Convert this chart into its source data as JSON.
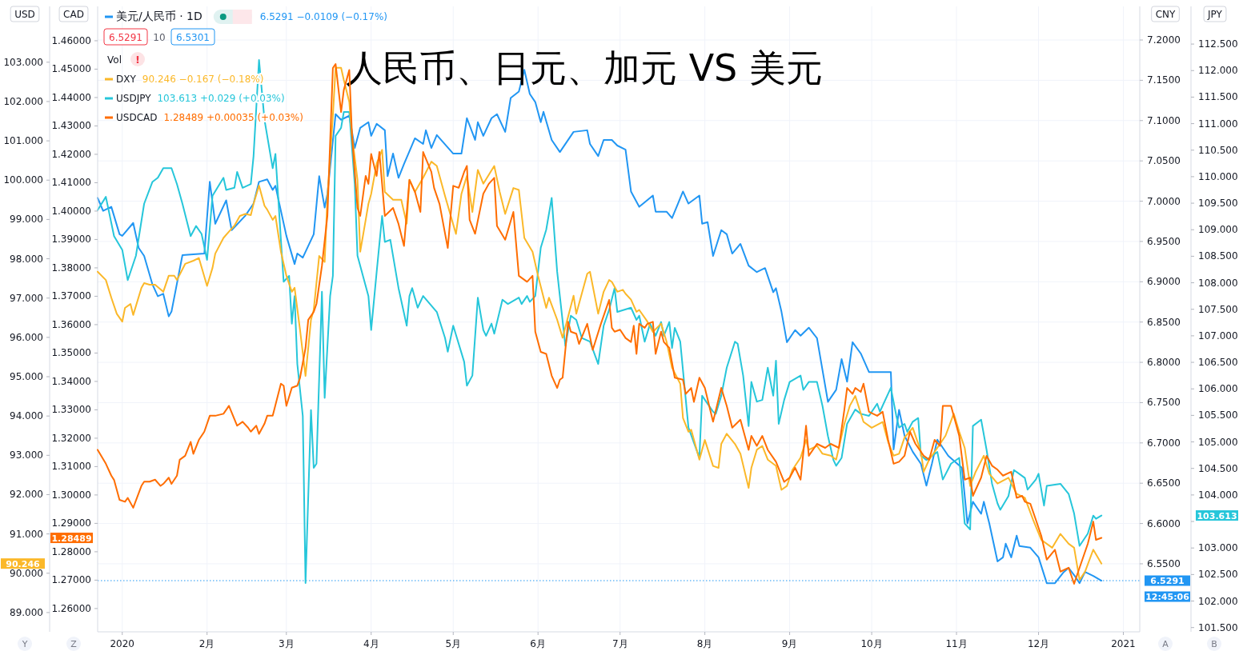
{
  "chart_data": [
    {
      "type": "line",
      "title": "人民币、日元、加元 VS 美元",
      "ylabel": "CNY",
      "y2label": "JPY",
      "grid": true,
      "legend": "top left",
      "xlim": [
        "2019-12-23",
        "2021-01-07"
      ],
      "xticks": [
        {
          "value": "2020-01-01",
          "label": "2020"
        },
        {
          "value": "2020-02-01",
          "label": "2月"
        },
        {
          "value": "2020-03-01",
          "label": "3月"
        },
        {
          "value": "2020-04-01",
          "label": "4月"
        },
        {
          "value": "2020-05-01",
          "label": "5月"
        },
        {
          "value": "2020-06-01",
          "label": "6月"
        },
        {
          "value": "2020-07-01",
          "label": "7月"
        },
        {
          "value": "2020-08-01",
          "label": "8月"
        },
        {
          "value": "2020-09-01",
          "label": "9月"
        },
        {
          "value": "2020-10-01",
          "label": "10月"
        },
        {
          "value": "2020-11-01",
          "label": "11月"
        },
        {
          "value": "2020-12-01",
          "label": "12月"
        },
        {
          "value": "2021-01-01",
          "label": "2021"
        }
      ],
      "ylim": [
        6.4656,
        7.2417
      ],
      "yticks": [
        {
          "value": 6.55,
          "label": "6.5500"
        },
        {
          "value": 6.6,
          "label": "6.6000"
        },
        {
          "value": 6.65,
          "label": "6.6500"
        },
        {
          "value": 6.7,
          "label": "6.7000"
        },
        {
          "value": 6.75,
          "label": "6.7500"
        },
        {
          "value": 6.8,
          "label": "6.8000"
        },
        {
          "value": 6.85,
          "label": "6.8500"
        },
        {
          "value": 6.9,
          "label": "6.9000"
        },
        {
          "value": 6.95,
          "label": "6.9500"
        },
        {
          "value": 7.0,
          "label": "7.0000"
        },
        {
          "value": 7.05,
          "label": "7.0500"
        },
        {
          "value": 7.1,
          "label": "7.1000"
        },
        {
          "value": 7.15,
          "label": "7.1500"
        },
        {
          "value": 7.2,
          "label": "7.2000"
        }
      ],
      "y2lim": [
        101.42,
        113.21
      ],
      "y2ticks": [
        {
          "value": 101.5,
          "label": "101.500"
        },
        {
          "value": 102,
          "label": "102.000"
        },
        {
          "value": 102.5,
          "label": "102.500"
        },
        {
          "value": 103,
          "label": "103.000"
        },
        {
          "value": 103.5,
          "label": null
        },
        {
          "value": 104,
          "label": "104.000"
        },
        {
          "value": 104.5,
          "label": "104.500"
        },
        {
          "value": 105,
          "label": "105.000"
        },
        {
          "value": 105.5,
          "label": "105.500"
        },
        {
          "value": 106,
          "label": "106.000"
        },
        {
          "value": 106.5,
          "label": "106.500"
        },
        {
          "value": 107,
          "label": "107.000"
        },
        {
          "value": 107.5,
          "label": "107.500"
        },
        {
          "value": 108,
          "label": "108.000"
        },
        {
          "value": 108.5,
          "label": "108.500"
        },
        {
          "value": 109,
          "label": "109.000"
        },
        {
          "value": 109.5,
          "label": "109.500"
        },
        {
          "value": 110,
          "label": "110.000"
        },
        {
          "value": 110.5,
          "label": "110.500"
        },
        {
          "value": 111,
          "label": "111.000"
        },
        {
          "value": 111.5,
          "label": "111.500"
        },
        {
          "value": 112,
          "label": "112.000"
        },
        {
          "value": 112.5,
          "label": "112.500"
        }
      ],
      "series": [
        {
          "name": "美元/人民币 · 1D",
          "color": "#2196f3",
          "x": [
            "2019-12-23",
            "2019-12-25",
            "2019-12-28",
            "2019-12-31",
            "2020-01-01",
            "2020-01-05",
            "2020-01-07",
            "2020-01-09",
            "2020-01-12",
            "2020-01-14",
            "2020-01-16",
            "2020-01-18",
            "2020-01-19",
            "2020-01-23",
            "2020-01-31",
            "2020-02-02",
            "2020-02-04",
            "2020-02-08",
            "2020-02-10",
            "2020-02-15",
            "2020-02-18",
            "2020-02-20",
            "2020-02-23",
            "2020-02-25",
            "2020-02-26",
            "2020-03-01",
            "2020-03-04",
            "2020-03-05",
            "2020-03-07",
            "2020-03-11",
            "2020-03-13",
            "2020-03-15",
            "2020-03-16",
            "2020-03-19",
            "2020-03-21",
            "2020-03-24",
            "2020-03-26",
            "2020-03-28",
            "2020-03-31",
            "2020-04-01",
            "2020-04-03",
            "2020-04-06",
            "2020-04-07",
            "2020-04-09",
            "2020-04-11",
            "2020-04-13",
            "2020-04-17",
            "2020-04-20",
            "2020-04-21",
            "2020-04-23",
            "2020-04-25",
            "2020-05-01",
            "2020-05-04",
            "2020-05-06",
            "2020-05-09",
            "2020-05-10",
            "2020-05-12",
            "2020-05-15",
            "2020-05-17",
            "2020-05-20",
            "2020-05-22",
            "2020-05-25",
            "2020-05-27",
            "2020-05-29",
            "2020-05-31",
            "2020-06-02",
            "2020-06-03",
            "2020-06-06",
            "2020-06-09",
            "2020-06-14",
            "2020-06-19",
            "2020-06-20",
            "2020-06-23",
            "2020-06-25",
            "2020-06-28",
            "2020-06-30",
            "2020-07-03",
            "2020-07-05",
            "2020-07-08",
            "2020-07-13",
            "2020-07-14",
            "2020-07-18",
            "2020-07-20",
            "2020-07-24",
            "2020-07-26",
            "2020-07-30",
            "2020-07-31",
            "2020-08-02",
            "2020-08-04",
            "2020-08-07",
            "2020-08-09",
            "2020-08-11",
            "2020-08-14",
            "2020-08-17",
            "2020-08-20",
            "2020-08-23",
            "2020-08-26",
            "2020-08-27",
            "2020-08-29",
            "2020-08-31",
            "2020-09-03",
            "2020-09-05",
            "2020-09-08",
            "2020-09-11",
            "2020-09-15",
            "2020-09-18",
            "2020-09-20",
            "2020-09-22",
            "2020-09-24",
            "2020-09-27",
            "2020-09-30",
            "2020-10-08",
            "2020-10-09",
            "2020-10-11",
            "2020-10-13",
            "2020-10-16",
            "2020-10-19",
            "2020-10-21",
            "2020-10-23",
            "2020-10-25",
            "2020-10-29",
            "2020-11-03",
            "2020-11-05",
            "2020-11-07",
            "2020-11-10",
            "2020-11-11",
            "2020-11-13",
            "2020-11-16",
            "2020-11-18",
            "2020-11-19",
            "2020-11-21",
            "2020-11-23",
            "2020-11-24",
            "2020-11-28",
            "2020-12-01",
            "2020-12-04",
            "2020-12-07",
            "2020-12-10",
            "2020-12-12",
            "2020-12-14",
            "2020-12-16",
            "2020-12-18",
            "2020-12-21",
            "2020-12-24"
          ],
          "values": [
            7.004,
            6.988,
            6.993,
            6.959,
            6.957,
            6.973,
            6.942,
            6.932,
            6.897,
            6.882,
            6.885,
            6.857,
            6.863,
            6.933,
            6.935,
            7.024,
            6.972,
            7.001,
            6.964,
            6.982,
            6.997,
            7.024,
            7.027,
            7.014,
            7.019,
            6.957,
            6.922,
            6.935,
            6.93,
            6.959,
            7.031,
            6.992,
            7.009,
            7.108,
            7.101,
            7.106,
            7.066,
            7.091,
            7.098,
            7.081,
            7.096,
            7.088,
            7.031,
            7.059,
            7.029,
            7.046,
            7.078,
            7.071,
            7.088,
            7.066,
            7.082,
            7.059,
            7.059,
            7.103,
            7.076,
            7.098,
            7.081,
            7.103,
            7.108,
            7.086,
            7.128,
            7.136,
            7.163,
            7.133,
            7.123,
            7.098,
            7.111,
            7.076,
            7.061,
            7.086,
            7.088,
            7.071,
            7.056,
            7.076,
            7.076,
            7.069,
            7.064,
            7.012,
            6.993,
            7.007,
            6.987,
            6.987,
            6.979,
            7.012,
            6.997,
            7.007,
            6.972,
            6.974,
            6.932,
            6.964,
            6.959,
            6.935,
            6.947,
            6.92,
            6.912,
            6.917,
            6.887,
            6.892,
            6.863,
            6.825,
            6.84,
            6.833,
            6.843,
            6.83,
            6.751,
            6.766,
            6.804,
            6.776,
            6.825,
            6.811,
            6.788,
            6.788,
            6.692,
            6.741,
            6.709,
            6.689,
            6.674,
            6.647,
            6.674,
            6.704,
            6.684,
            6.669,
            6.6,
            6.627,
            6.612,
            6.627,
            6.6,
            6.553,
            6.558,
            6.575,
            6.558,
            6.585,
            6.572,
            6.57,
            6.558,
            6.526,
            6.526,
            6.539,
            6.545,
            6.536,
            6.526,
            6.54,
            6.535,
            6.5291
          ]
        },
        {
          "name": "USDJPY",
          "color": "#26c6da",
          "axis": "y2",
          "x": [
            "2019-12-23",
            "2019-12-26",
            "2019-12-29",
            "2020-01-01",
            "2020-01-03",
            "2020-01-06",
            "2020-01-09",
            "2020-01-12",
            "2020-01-14",
            "2020-01-16",
            "2020-01-19",
            "2020-01-21",
            "2020-01-23",
            "2020-01-26",
            "2020-01-28",
            "2020-01-30",
            "2020-02-01",
            "2020-02-03",
            "2020-02-07",
            "2020-02-08",
            "2020-02-11",
            "2020-02-12",
            "2020-02-14",
            "2020-02-17",
            "2020-02-18",
            "2020-02-20",
            "2020-02-22",
            "2020-02-25",
            "2020-02-26",
            "2020-02-28",
            "2020-02-29",
            "2020-03-02",
            "2020-03-03",
            "2020-03-04",
            "2020-03-05",
            "2020-03-07",
            "2020-03-08",
            "2020-03-10",
            "2020-03-11",
            "2020-03-12",
            "2020-03-14",
            "2020-03-15",
            "2020-03-17",
            "2020-03-18",
            "2020-03-19",
            "2020-03-21",
            "2020-03-22",
            "2020-03-24",
            "2020-03-26",
            "2020-03-27",
            "2020-03-31",
            "2020-04-01",
            "2020-04-03",
            "2020-04-05",
            "2020-04-06",
            "2020-04-08",
            "2020-04-11",
            "2020-04-14",
            "2020-04-15",
            "2020-04-16",
            "2020-04-18",
            "2020-04-20",
            "2020-04-25",
            "2020-04-28",
            "2020-04-29",
            "2020-05-01",
            "2020-05-05",
            "2020-05-06",
            "2020-05-08",
            "2020-05-10",
            "2020-05-12",
            "2020-05-13",
            "2020-05-15",
            "2020-05-16",
            "2020-05-19",
            "2020-05-21",
            "2020-05-25",
            "2020-05-26",
            "2020-05-28",
            "2020-05-29",
            "2020-05-31",
            "2020-06-02",
            "2020-06-04",
            "2020-06-06",
            "2020-06-08",
            "2020-06-11",
            "2020-06-13",
            "2020-06-15",
            "2020-06-17",
            "2020-06-20",
            "2020-06-23",
            "2020-06-25",
            "2020-06-27",
            "2020-06-29",
            "2020-06-30",
            "2020-07-05",
            "2020-07-07",
            "2020-07-08",
            "2020-07-10",
            "2020-07-12",
            "2020-07-14",
            "2020-07-16",
            "2020-07-17",
            "2020-07-19",
            "2020-07-20",
            "2020-07-21",
            "2020-07-23",
            "2020-07-26",
            "2020-07-30",
            "2020-07-31",
            "2020-08-04",
            "2020-08-05",
            "2020-08-07",
            "2020-08-09",
            "2020-08-12",
            "2020-08-13",
            "2020-08-15",
            "2020-08-17",
            "2020-08-18",
            "2020-08-20",
            "2020-08-22",
            "2020-08-24",
            "2020-08-26",
            "2020-08-27",
            "2020-08-28",
            "2020-08-30",
            "2020-09-01",
            "2020-09-05",
            "2020-09-06",
            "2020-09-08",
            "2020-09-11",
            "2020-09-13",
            "2020-09-15",
            "2020-09-17",
            "2020-09-18",
            "2020-09-20",
            "2020-09-22",
            "2020-09-25",
            "2020-09-27",
            "2020-09-30",
            "2020-10-03",
            "2020-10-04",
            "2020-10-08",
            "2020-10-10",
            "2020-10-11",
            "2020-10-13",
            "2020-10-14",
            "2020-10-16",
            "2020-10-18",
            "2020-10-19",
            "2020-10-21",
            "2020-10-25",
            "2020-10-27",
            "2020-10-30",
            "2020-11-02",
            "2020-11-04",
            "2020-11-06",
            "2020-11-07",
            "2020-11-10",
            "2020-11-12",
            "2020-11-14",
            "2020-11-16",
            "2020-11-17",
            "2020-11-20",
            "2020-11-22",
            "2020-11-26",
            "2020-11-27",
            "2020-11-30",
            "2020-12-01",
            "2020-12-03",
            "2020-12-04",
            "2020-12-09",
            "2020-12-12",
            "2020-12-14",
            "2020-12-16",
            "2020-12-19",
            "2020-12-21",
            "2020-12-22",
            "2020-12-24"
          ],
          "values": [
            109.37,
            109.62,
            108.88,
            108.62,
            108.05,
            108.51,
            109.49,
            109.9,
            109.98,
            110.16,
            110.16,
            109.86,
            109.49,
            108.88,
            109.07,
            108.92,
            108.43,
            109.64,
            109.98,
            109.75,
            109.79,
            110.09,
            109.79,
            109.86,
            110.39,
            112.2,
            111.07,
            110.16,
            110.43,
            108.81,
            108.02,
            108.13,
            107.23,
            107.75,
            106.47,
            105.49,
            102.34,
            105.6,
            104.51,
            104.59,
            107.83,
            105.83,
            107.75,
            108.13,
            110.77,
            110.92,
            111.22,
            111.22,
            109.86,
            108.51,
            107.75,
            107.11,
            108.2,
            109.26,
            108.77,
            108.81,
            107.9,
            107.19,
            107.75,
            107.9,
            107.53,
            107.75,
            107.45,
            106.96,
            106.7,
            107.19,
            106.51,
            106.06,
            106.25,
            107.72,
            107.11,
            107.0,
            107.23,
            107.04,
            107.68,
            107.6,
            107.72,
            107.6,
            107.75,
            107.64,
            107.75,
            108.66,
            109.0,
            109.6,
            108.21,
            106.81,
            107.38,
            107.3,
            106.96,
            106.89,
            106.47,
            107.19,
            107.49,
            107.9,
            107.45,
            107.53,
            107.3,
            107.38,
            106.89,
            107.23,
            107.0,
            107.26,
            107.0,
            107.26,
            106.77,
            107.15,
            106.89,
            105.27,
            104.7,
            105.87,
            105.57,
            105.53,
            105.87,
            106.4,
            106.89,
            106.85,
            106.25,
            105.3,
            106.13,
            105.76,
            105.79,
            106.4,
            105.87,
            106.53,
            105.34,
            105.79,
            106.13,
            106.25,
            105.98,
            106.13,
            106.13,
            105.68,
            105.11,
            104.66,
            104.55,
            104.7,
            105.34,
            105.61,
            105.53,
            105.49,
            105.72,
            105.57,
            106.02,
            105.49,
            105.27,
            105.34,
            105.19,
            105.38,
            105.45,
            104.74,
            104.66,
            104.81,
            104.29,
            104.59,
            104.7,
            103.46,
            103.35,
            105.3,
            105.42,
            104.85,
            104.21,
            103.84,
            103.72,
            103.98,
            104.47,
            104.32,
            104.1,
            104.29,
            104.4,
            103.8,
            104.17,
            104.21,
            104.02,
            103.65,
            103.04,
            103.27,
            103.61,
            103.55,
            103.613
          ]
        }
      ],
      "ref_lines": [
        {
          "axis": "y",
          "value": 6.5291,
          "label": "6.5291",
          "color": "#2196f3",
          "line_style": "dotted"
        }
      ],
      "annotations": [
        "6.5291 −0.0109 (−0.17%)",
        "103.613 +0.029 (+0.03%)",
        "6.5291",
        "10",
        "6.5301",
        "Vol",
        "!",
        "103.613",
        "12:45:06",
        "A",
        "B"
      ]
    },
    {
      "type": "line",
      "ylabel": "USD",
      "y2label": "CAD",
      "legend": "top left",
      "tick_labels": "y",
      "xlim": [
        "2019-12-23",
        "2021-01-07"
      ],
      "ylim": [
        88.51,
        104.42
      ],
      "yticks": [
        {
          "value": 89,
          "label": "89.000"
        },
        {
          "value": 90,
          "label": "90.000"
        },
        {
          "value": 91,
          "label": "91.000"
        },
        {
          "value": 92,
          "label": "92.000"
        },
        {
          "value": 93,
          "label": "93.000"
        },
        {
          "value": 94,
          "label": "94.000"
        },
        {
          "value": 95,
          "label": "95.000"
        },
        {
          "value": 96,
          "label": "96.000"
        },
        {
          "value": 97,
          "label": "97.000"
        },
        {
          "value": 98,
          "label": "98.000"
        },
        {
          "value": 99,
          "label": "99.000"
        },
        {
          "value": 100,
          "label": "100.000"
        },
        {
          "value": 101,
          "label": "101.000"
        },
        {
          "value": 102,
          "label": "102.000"
        },
        {
          "value": 103,
          "label": "103.000"
        }
      ],
      "y2lim": [
        1.2518,
        1.4721
      ],
      "y2ticks": [
        {
          "value": 1.26,
          "label": "1.26000"
        },
        {
          "value": 1.27,
          "label": "1.27000"
        },
        {
          "value": 1.28,
          "label": "1.28000"
        },
        {
          "value": 1.29,
          "label": "1.29000"
        },
        {
          "value": 1.3,
          "label": "1.30000"
        },
        {
          "value": 1.31,
          "label": "1.31000"
        },
        {
          "value": 1.32,
          "label": "1.32000"
        },
        {
          "value": 1.33,
          "label": "1.33000"
        },
        {
          "value": 1.34,
          "label": "1.34000"
        },
        {
          "value": 1.35,
          "label": "1.35000"
        },
        {
          "value": 1.36,
          "label": "1.36000"
        },
        {
          "value": 1.37,
          "label": "1.37000"
        },
        {
          "value": 1.38,
          "label": "1.38000"
        },
        {
          "value": 1.39,
          "label": "1.39000"
        },
        {
          "value": 1.4,
          "label": "1.40000"
        },
        {
          "value": 1.41,
          "label": "1.41000"
        },
        {
          "value": 1.42,
          "label": "1.42000"
        },
        {
          "value": 1.43,
          "label": "1.43000"
        },
        {
          "value": 1.44,
          "label": "1.44000"
        },
        {
          "value": 1.45,
          "label": "1.45000"
        },
        {
          "value": 1.46,
          "label": "1.46000"
        }
      ],
      "series": [
        {
          "name": "DXY",
          "color": "#fbb829",
          "x": [
            "2019-12-23",
            "2019-12-26",
            "2019-12-28",
            "2019-12-30",
            "2020-01-01",
            "2020-01-02",
            "2020-01-04",
            "2020-01-05",
            "2020-01-08",
            "2020-01-09",
            "2020-01-11",
            "2020-01-13",
            "2020-01-16",
            "2020-01-18",
            "2020-01-20",
            "2020-01-21",
            "2020-01-24",
            "2020-01-27",
            "2020-01-29",
            "2020-02-01",
            "2020-02-03",
            "2020-02-04",
            "2020-02-07",
            "2020-02-09",
            "2020-02-11",
            "2020-02-13",
            "2020-02-15",
            "2020-02-17",
            "2020-02-18",
            "2020-02-20",
            "2020-02-22",
            "2020-02-23",
            "2020-02-25",
            "2020-02-26",
            "2020-02-28",
            "2020-03-01",
            "2020-03-03",
            "2020-03-04",
            "2020-03-06",
            "2020-03-08",
            "2020-03-10",
            "2020-03-11",
            "2020-03-13",
            "2020-03-15",
            "2020-03-16",
            "2020-03-18",
            "2020-03-19",
            "2020-03-21",
            "2020-03-22",
            "2020-03-24",
            "2020-03-25",
            "2020-03-27",
            "2020-03-28",
            "2020-03-30",
            "2020-03-31",
            "2020-04-01",
            "2020-04-03",
            "2020-04-05",
            "2020-04-06",
            "2020-04-09",
            "2020-04-12",
            "2020-04-14",
            "2020-04-15",
            "2020-04-17",
            "2020-04-20",
            "2020-04-23",
            "2020-04-25",
            "2020-04-28",
            "2020-05-02",
            "2020-05-04",
            "2020-05-06",
            "2020-05-08",
            "2020-05-10",
            "2020-05-12",
            "2020-05-16",
            "2020-05-18",
            "2020-05-20",
            "2020-05-23",
            "2020-05-25",
            "2020-05-27",
            "2020-05-30",
            "2020-06-01",
            "2020-06-04",
            "2020-06-05",
            "2020-06-08",
            "2020-06-10",
            "2020-06-14",
            "2020-06-15",
            "2020-06-19",
            "2020-06-20",
            "2020-06-23",
            "2020-06-25",
            "2020-06-27",
            "2020-06-28",
            "2020-06-30",
            "2020-07-02",
            "2020-07-03",
            "2020-07-05",
            "2020-07-07",
            "2020-07-08",
            "2020-07-11",
            "2020-07-13",
            "2020-07-16",
            "2020-07-18",
            "2020-07-20",
            "2020-07-23",
            "2020-07-24",
            "2020-07-26",
            "2020-07-27",
            "2020-07-30",
            "2020-08-01",
            "2020-08-04",
            "2020-08-06",
            "2020-08-07",
            "2020-08-09",
            "2020-08-12",
            "2020-08-14",
            "2020-08-17",
            "2020-08-18",
            "2020-08-20",
            "2020-08-22",
            "2020-08-24",
            "2020-08-27",
            "2020-08-29",
            "2020-08-31",
            "2020-09-02",
            "2020-09-05",
            "2020-09-07",
            "2020-09-08",
            "2020-09-11",
            "2020-09-13",
            "2020-09-16",
            "2020-09-18",
            "2020-09-21",
            "2020-09-23",
            "2020-09-25",
            "2020-09-28",
            "2020-10-01",
            "2020-10-05",
            "2020-10-07",
            "2020-10-09",
            "2020-10-11",
            "2020-10-13",
            "2020-10-16",
            "2020-10-19",
            "2020-10-20",
            "2020-10-22",
            "2020-10-25",
            "2020-10-28",
            "2020-10-31",
            "2020-11-02",
            "2020-11-04",
            "2020-11-06",
            "2020-11-08",
            "2020-11-11",
            "2020-11-13",
            "2020-11-16",
            "2020-11-20",
            "2020-11-23",
            "2020-11-26",
            "2020-11-29",
            "2020-12-02",
            "2020-12-06",
            "2020-12-09",
            "2020-12-12",
            "2020-12-14",
            "2020-12-16",
            "2020-12-18",
            "2020-12-21",
            "2020-12-24"
          ],
          "values": [
            97.67,
            97.46,
            97.01,
            96.6,
            96.4,
            96.75,
            96.85,
            96.57,
            97.26,
            97.38,
            97.34,
            97.34,
            97.16,
            97.57,
            97.57,
            97.46,
            97.87,
            97.95,
            98.02,
            97.31,
            97.77,
            98.13,
            98.53,
            98.69,
            98.84,
            99.09,
            99.14,
            99.11,
            99.4,
            99.86,
            99.35,
            99.25,
            98.99,
            99.09,
            98.18,
            97.57,
            97.16,
            97.26,
            96.19,
            95.02,
            96.45,
            96.7,
            98.07,
            97.92,
            99.55,
            101.64,
            102.86,
            102.86,
            102.55,
            101.99,
            101.13,
            100.01,
            98.18,
            98.99,
            99.4,
            99.65,
            100.42,
            100.77,
            99.7,
            99.5,
            99.5,
            98.89,
            100.01,
            99.7,
            100.06,
            100.47,
            100.36,
            99.6,
            98.63,
            99.65,
            100.11,
            99.19,
            100.26,
            99.91,
            100.36,
            99.7,
            99.14,
            99.8,
            99.75,
            98.53,
            98.18,
            97.57,
            96.75,
            97.01,
            96.45,
            95.99,
            97.06,
            96.6,
            97.62,
            97.67,
            96.6,
            97.16,
            97.46,
            97.41,
            97.16,
            97.21,
            97.11,
            96.96,
            96.65,
            96.7,
            96.4,
            96.14,
            96.35,
            95.89,
            95.23,
            94.82,
            93.95,
            93.6,
            93.65,
            92.89,
            93.39,
            92.73,
            92.68,
            93.29,
            93.55,
            93.29,
            93.04,
            92.17,
            92.68,
            93.14,
            93.24,
            92.89,
            92.73,
            92.12,
            92.22,
            92.63,
            92.94,
            93.39,
            93.14,
            93.24,
            93.04,
            92.99,
            92.89,
            93.8,
            94.26,
            94.51,
            93.85,
            93.7,
            93.85,
            93.34,
            92.99,
            93.04,
            93.45,
            93.7,
            93.09,
            92.58,
            92.89,
            93.19,
            93.5,
            94.06,
            93.6,
            93.19,
            92.22,
            92.58,
            92.99,
            92.53,
            92.28,
            92.43,
            92.02,
            91.92,
            91.36,
            90.85,
            90.65,
            91.0,
            90.75,
            90.65,
            89.83,
            90.04,
            90.6,
            90.246
          ]
        },
        {
          "name": "USDCAD",
          "color": "#ff6d00",
          "axis": "y2",
          "x": [
            "2019-12-23",
            "2019-12-26",
            "2019-12-28",
            "2019-12-29",
            "2019-12-31",
            "2020-01-02",
            "2020-01-03",
            "2020-01-05",
            "2020-01-08",
            "2020-01-09",
            "2020-01-11",
            "2020-01-13",
            "2020-01-15",
            "2020-01-16",
            "2020-01-18",
            "2020-01-19",
            "2020-01-21",
            "2020-01-22",
            "2020-01-24",
            "2020-01-26",
            "2020-01-27",
            "2020-01-29",
            "2020-01-31",
            "2020-02-02",
            "2020-02-04",
            "2020-02-07",
            "2020-02-09",
            "2020-02-12",
            "2020-02-14",
            "2020-02-16",
            "2020-02-17",
            "2020-02-19",
            "2020-02-20",
            "2020-02-22",
            "2020-02-23",
            "2020-02-25",
            "2020-02-28",
            "2020-02-29",
            "2020-03-01",
            "2020-03-03",
            "2020-03-05",
            "2020-03-06",
            "2020-03-08",
            "2020-03-09",
            "2020-03-11",
            "2020-03-12",
            "2020-03-14",
            "2020-03-16",
            "2020-03-18",
            "2020-03-19",
            "2020-03-21",
            "2020-03-22",
            "2020-03-24",
            "2020-03-25",
            "2020-03-27",
            "2020-03-28",
            "2020-03-30",
            "2020-03-31",
            "2020-04-01",
            "2020-04-03",
            "2020-04-04",
            "2020-04-06",
            "2020-04-09",
            "2020-04-11",
            "2020-04-13",
            "2020-04-15",
            "2020-04-17",
            "2020-04-19",
            "2020-04-20",
            "2020-04-23",
            "2020-04-24",
            "2020-04-26",
            "2020-04-29",
            "2020-05-01",
            "2020-05-03",
            "2020-05-05",
            "2020-05-06",
            "2020-05-07",
            "2020-05-09",
            "2020-05-12",
            "2020-05-14",
            "2020-05-16",
            "2020-05-17",
            "2020-05-20",
            "2020-05-23",
            "2020-05-25",
            "2020-05-28",
            "2020-05-30",
            "2020-05-31",
            "2020-06-02",
            "2020-06-04",
            "2020-06-06",
            "2020-06-08",
            "2020-06-09",
            "2020-06-10",
            "2020-06-12",
            "2020-06-13",
            "2020-06-15",
            "2020-06-16",
            "2020-06-19",
            "2020-06-21",
            "2020-06-24",
            "2020-06-27",
            "2020-06-28",
            "2020-06-29",
            "2020-07-01",
            "2020-07-03",
            "2020-07-05",
            "2020-07-06",
            "2020-07-07",
            "2020-07-08",
            "2020-07-10",
            "2020-07-11",
            "2020-07-13",
            "2020-07-14",
            "2020-07-16",
            "2020-07-17",
            "2020-07-19",
            "2020-07-21",
            "2020-07-24",
            "2020-07-25",
            "2020-07-27",
            "2020-07-28",
            "2020-07-30",
            "2020-08-01",
            "2020-08-04",
            "2020-08-07",
            "2020-08-09",
            "2020-08-11",
            "2020-08-14",
            "2020-08-17",
            "2020-08-18",
            "2020-08-20",
            "2020-08-22",
            "2020-08-24",
            "2020-08-27",
            "2020-08-30",
            "2020-09-01",
            "2020-09-03",
            "2020-09-05",
            "2020-09-07",
            "2020-09-08",
            "2020-09-11",
            "2020-09-14",
            "2020-09-16",
            "2020-09-19",
            "2020-09-21",
            "2020-09-22",
            "2020-09-24",
            "2020-09-25",
            "2020-09-27",
            "2020-09-28",
            "2020-09-30",
            "2020-10-03",
            "2020-10-05",
            "2020-10-07",
            "2020-10-09",
            "2020-10-11",
            "2020-10-13",
            "2020-10-15",
            "2020-10-17",
            "2020-10-20",
            "2020-10-22",
            "2020-10-24",
            "2020-10-26",
            "2020-10-27",
            "2020-10-30",
            "2020-11-02",
            "2020-11-04",
            "2020-11-06",
            "2020-11-07",
            "2020-11-10",
            "2020-11-12",
            "2020-11-14",
            "2020-11-16",
            "2020-11-18",
            "2020-11-21",
            "2020-11-23",
            "2020-11-25",
            "2020-11-26",
            "2020-11-28",
            "2020-11-30",
            "2020-12-02",
            "2020-12-04",
            "2020-12-07",
            "2020-12-09",
            "2020-12-12",
            "2020-12-14",
            "2020-12-16",
            "2020-12-19",
            "2020-12-21",
            "2020-12-22",
            "2020-12-24"
          ],
          "values": [
            1.3159,
            1.311,
            1.3068,
            1.3053,
            1.2983,
            1.2976,
            1.299,
            1.2955,
            1.3032,
            1.3047,
            1.3047,
            1.3054,
            1.3032,
            1.3039,
            1.3061,
            1.3039,
            1.3068,
            1.3124,
            1.3138,
            1.3187,
            1.3145,
            1.3194,
            1.3223,
            1.3279,
            1.3279,
            1.3286,
            1.3314,
            1.3244,
            1.3258,
            1.3237,
            1.3223,
            1.3244,
            1.3215,
            1.3251,
            1.3279,
            1.3279,
            1.3392,
            1.3385,
            1.3314,
            1.3378,
            1.3385,
            1.3413,
            1.3518,
            1.3617,
            1.3645,
            1.3673,
            1.3807,
            1.3983,
            1.4504,
            1.4518,
            1.4349,
            1.4427,
            1.4497,
            1.4265,
            1.4011,
            1.3983,
            1.4124,
            1.4096,
            1.4201,
            1.4124,
            1.4208,
            1.3983,
            1.4011,
            1.3955,
            1.3877,
            1.411,
            1.4068,
            1.3997,
            1.4208,
            1.4138,
            1.4082,
            1.4025,
            1.387,
            1.4089,
            1.4082,
            1.4138,
            1.4159,
            1.3969,
            1.392,
            1.4061,
            1.4096,
            1.4117,
            1.3948,
            1.3899,
            1.3997,
            1.3772,
            1.3751,
            1.3772,
            1.3575,
            1.3504,
            1.3497,
            1.342,
            1.3377,
            1.3406,
            1.3413,
            1.361,
            1.3575,
            1.3568,
            1.3532,
            1.3603,
            1.3511,
            1.3603,
            1.3687,
            1.3589,
            1.3575,
            1.3582,
            1.3553,
            1.3539,
            1.3596,
            1.3497,
            1.3603,
            1.3589,
            1.3603,
            1.361,
            1.3497,
            1.3575,
            1.3539,
            1.3518,
            1.3413,
            1.3406,
            1.3356,
            1.3377,
            1.3328,
            1.3413,
            1.3377,
            1.3258,
            1.3377,
            1.3314,
            1.3237,
            1.3265,
            1.3159,
            1.3208,
            1.3173,
            1.3208,
            1.3159,
            1.3117,
            1.3046,
            1.3061,
            1.3096,
            1.3054,
            1.3244,
            1.3138,
            1.318,
            1.3166,
            1.318,
            1.3166,
            1.33,
            1.3377,
            1.3356,
            1.3377,
            1.3363,
            1.3392,
            1.3293,
            1.3279,
            1.3293,
            1.3194,
            1.311,
            1.3117,
            1.3138,
            1.3223,
            1.318,
            1.3138,
            1.3124,
            1.3194,
            1.3173,
            1.3314,
            1.3314,
            1.3208,
            1.3054,
            1.3061,
            1.2997,
            1.3061,
            1.3138,
            1.3103,
            1.3089,
            1.3068,
            1.3082,
            1.299,
            1.2997,
            1.2976,
            1.2969,
            1.2913,
            1.2856,
            1.2772,
            1.2807,
            1.273,
            1.2744,
            1.2687,
            1.2744,
            1.2828,
            1.2906,
            1.2842,
            1.28489
          ]
        }
      ],
      "annotations": [
        "90.246 −0.167 (−0.18%)",
        "1.28489 +0.00035 (+0.03%)",
        "90.246",
        "1.28489",
        "Y",
        "Z"
      ]
    }
  ]
}
